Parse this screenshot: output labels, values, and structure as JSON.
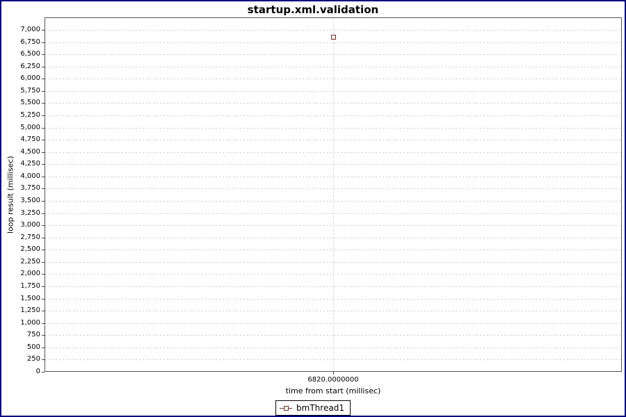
{
  "window": {
    "border_color": "#000080",
    "background_color": "#ffffff"
  },
  "chart_data": {
    "type": "scatter",
    "title": "startup.xml.validation",
    "xlabel": "time from start (millisec)",
    "ylabel": "loop result (millisec)",
    "ylim": [
      0,
      7000
    ],
    "y_tick_step": 250,
    "grid": "dashed",
    "grid_color": "#cccccc",
    "legend_position": "bottom-center",
    "y_ticks": [
      {
        "value": 0,
        "label": "0"
      },
      {
        "value": 250,
        "label": "250"
      },
      {
        "value": 500,
        "label": "500"
      },
      {
        "value": 750,
        "label": "750"
      },
      {
        "value": 1000,
        "label": "1,000"
      },
      {
        "value": 1250,
        "label": "1,250"
      },
      {
        "value": 1500,
        "label": "1,500"
      },
      {
        "value": 1750,
        "label": "1,750"
      },
      {
        "value": 2000,
        "label": "2,000"
      },
      {
        "value": 2250,
        "label": "2,250"
      },
      {
        "value": 2500,
        "label": "2,500"
      },
      {
        "value": 2750,
        "label": "2,750"
      },
      {
        "value": 3000,
        "label": "3,000"
      },
      {
        "value": 3250,
        "label": "3,250"
      },
      {
        "value": 3500,
        "label": "3,500"
      },
      {
        "value": 3750,
        "label": "3,750"
      },
      {
        "value": 4000,
        "label": "4,000"
      },
      {
        "value": 4250,
        "label": "4,250"
      },
      {
        "value": 4500,
        "label": "4,500"
      },
      {
        "value": 4750,
        "label": "4,750"
      },
      {
        "value": 5000,
        "label": "5,000"
      },
      {
        "value": 5250,
        "label": "5,250"
      },
      {
        "value": 5500,
        "label": "5,500"
      },
      {
        "value": 5750,
        "label": "5,750"
      },
      {
        "value": 6000,
        "label": "6,000"
      },
      {
        "value": 6250,
        "label": "6,250"
      },
      {
        "value": 6500,
        "label": "6,500"
      },
      {
        "value": 6750,
        "label": "6,750"
      },
      {
        "value": 7000,
        "label": "7,000"
      }
    ],
    "x_ticks": [
      {
        "value": 6820,
        "label": "6820.0000000",
        "position": "center"
      }
    ],
    "series": [
      {
        "name": "bmThread1",
        "marker": "square-outline",
        "marker_border_color": "#733030",
        "marker_fill_color": "#e9f4ec",
        "points": [
          {
            "x": 6820,
            "y": 6860
          }
        ]
      }
    ]
  },
  "legend": {
    "items": [
      {
        "label": "bmThread1",
        "marker": "line-square-icon"
      }
    ]
  }
}
